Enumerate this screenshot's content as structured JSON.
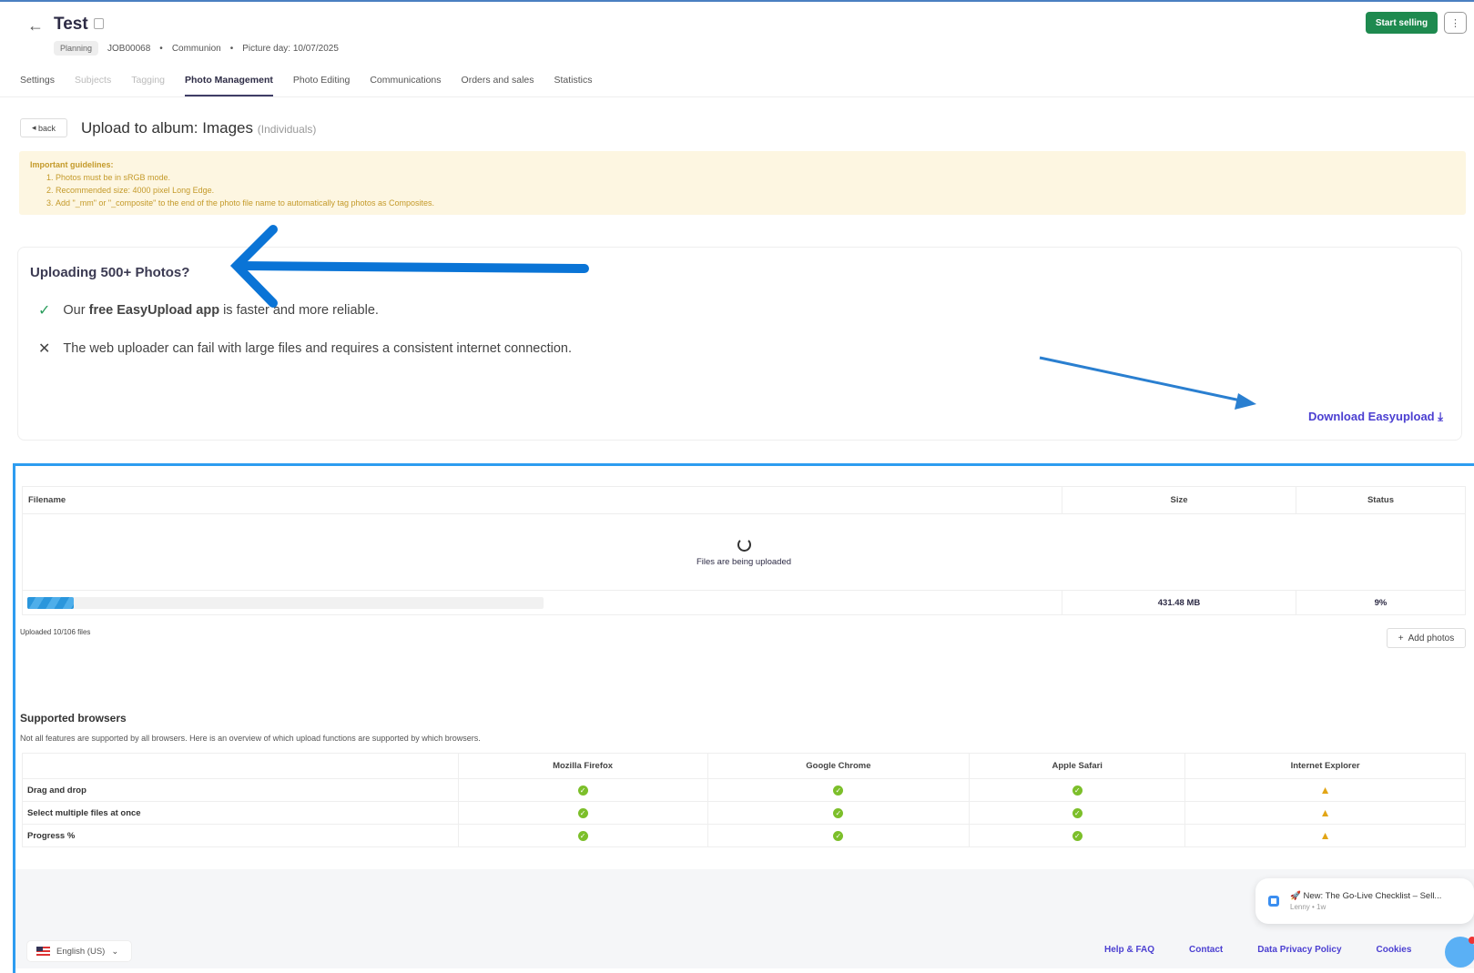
{
  "header": {
    "title": "Test",
    "status": "Planning",
    "job_id": "JOB00068",
    "category": "Communion",
    "picture_day": "Picture day: 10/07/2025",
    "start_selling": "Start selling",
    "more": "⋮"
  },
  "tabs": [
    {
      "label": "Settings",
      "state": "normal"
    },
    {
      "label": "Subjects",
      "state": "disabled"
    },
    {
      "label": "Tagging",
      "state": "disabled"
    },
    {
      "label": "Photo Management",
      "state": "active"
    },
    {
      "label": "Photo Editing",
      "state": "normal"
    },
    {
      "label": "Communications",
      "state": "normal"
    },
    {
      "label": "Orders and sales",
      "state": "normal"
    },
    {
      "label": "Statistics",
      "state": "normal"
    }
  ],
  "upload": {
    "back": "back",
    "title": "Upload to album: Images",
    "subtitle": "(Individuals)"
  },
  "guidelines": {
    "heading": "Important guidelines:",
    "items": [
      "Photos must be in sRGB mode.",
      "Recommended size: 4000 pixel Long Edge.",
      "Add \"_mm\" or \"_composite\" to the end of the photo file name to automatically tag photos as Composites."
    ]
  },
  "promo": {
    "heading": "Uploading 500+ Photos?",
    "pro_prefix": "Our ",
    "pro_bold": "free EasyUpload app",
    "pro_suffix": " is faster and more reliable.",
    "con": "The web uploader can fail with large files and requires a consistent internet connection.",
    "download": "Download Easyupload"
  },
  "files_table": {
    "headers": [
      "Filename",
      "Size",
      "Status"
    ],
    "loading": "Files are being uploaded",
    "total_size": "431.48 MB",
    "status": "9%",
    "progress_percent": 9,
    "uploaded_text": "Uploaded 10/106 files",
    "add_photos": "Add photos"
  },
  "browsers": {
    "heading": "Supported browsers",
    "description": "Not all features are supported by all browsers. Here is an overview of which upload functions are supported by which browsers.",
    "columns": [
      "Mozilla Firefox",
      "Google Chrome",
      "Apple Safari",
      "Internet Explorer"
    ],
    "rows": [
      {
        "feature": "Drag and drop",
        "support": [
          "yes",
          "yes",
          "yes",
          "warning"
        ]
      },
      {
        "feature": "Select multiple files at once",
        "support": [
          "yes",
          "yes",
          "yes",
          "warning"
        ]
      },
      {
        "feature": "Progress %",
        "support": [
          "yes",
          "yes",
          "yes",
          "warning"
        ]
      }
    ]
  },
  "footer": {
    "language": "English (US)",
    "links": [
      "Help & FAQ",
      "Contact",
      "Data Privacy Policy",
      "Cookies"
    ]
  },
  "notification": {
    "title": "🚀 New: The Go-Live Checklist – Sell...",
    "meta": "Lenny • 1w"
  },
  "colors": {
    "accent": "#4b3fd1",
    "success": "#1e8a4f",
    "annotation_arrow": "#0a74d6",
    "frame": "#2d9cf0"
  }
}
